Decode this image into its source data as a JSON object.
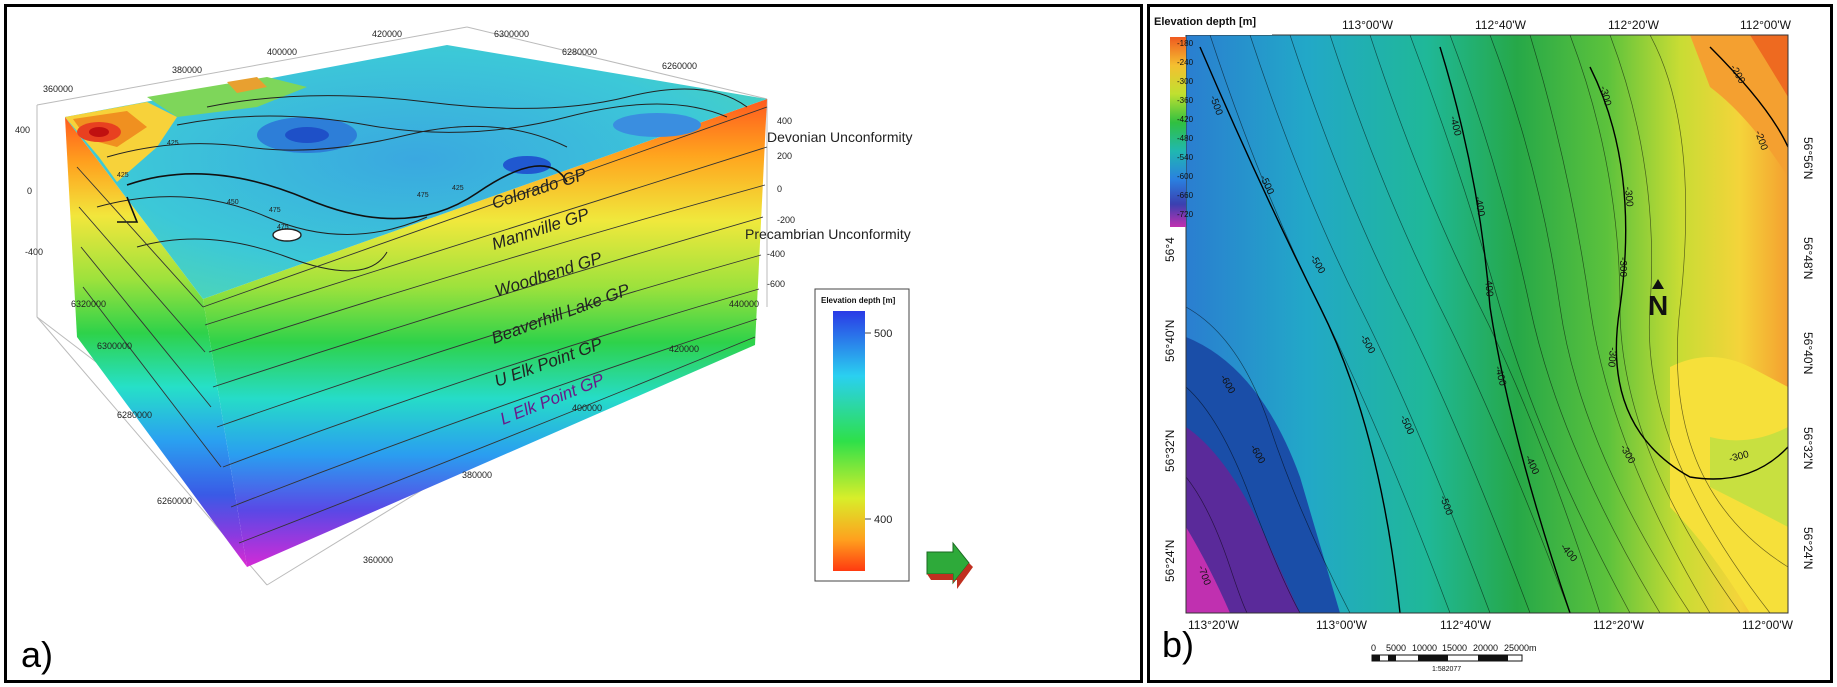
{
  "panel_a": {
    "label": "a)",
    "legend": {
      "title": "Elevation depth [m]",
      "ticks": [
        "500",
        "400"
      ]
    },
    "top_x_ticks": [
      "360000",
      "380000",
      "400000",
      "420000"
    ],
    "top_y_ticks": [
      "6300000",
      "6280000",
      "6260000"
    ],
    "left_z_ticks": [
      "400",
      "0",
      "-400"
    ],
    "right_z_ticks": [
      "400",
      "200",
      "0",
      "-200",
      "-400",
      "-600"
    ],
    "right_annotations": [
      "Devonian Unconformity",
      "Precambrian Unconformity"
    ],
    "left_y_ticks": [
      "6320000",
      "6300000",
      "6280000",
      "6260000"
    ],
    "bottom_x_ticks": [
      "440000",
      "420000",
      "400000",
      "380000",
      "360000"
    ],
    "formations": [
      "Colorado GP",
      "Mannville GP",
      "Woodbend GP",
      "Beaverhill Lake GP",
      "U Elk Point GP",
      "L Elk Point GP"
    ],
    "contour_labels": [
      "425",
      "475",
      "475",
      "475",
      "450",
      "425",
      "425"
    ]
  },
  "panel_b": {
    "label": "b)",
    "legend": {
      "title": "Elevation depth [m]",
      "ticks": [
        "-180",
        "-240",
        "-300",
        "-360",
        "-420",
        "-480",
        "-540",
        "-600",
        "-660",
        "-720"
      ]
    },
    "top_lon": [
      "113°00'W",
      "112°40'W",
      "112°20'W",
      "112°00'W"
    ],
    "bottom_lon": [
      "113°20'W",
      "113°00'W",
      "112°40'W",
      "112°20'W",
      "112°00'W"
    ],
    "left_lat": [
      "56°4",
      "56°40'N",
      "56°32'N",
      "56°24'N"
    ],
    "right_lat": [
      "56°56'N",
      "56°48'N",
      "56°40'N",
      "56°32'N",
      "56°24'N"
    ],
    "contour_labels": [
      "-500",
      "-500",
      "-500",
      "-500",
      "-500",
      "-500",
      "-600",
      "-600",
      "-700",
      "-400",
      "-400",
      "-400",
      "-400",
      "-400",
      "-400",
      "-300",
      "-300",
      "-300",
      "-300",
      "-300",
      "-300",
      "-200",
      "-200"
    ],
    "north": "N",
    "scalebar_ticks": [
      "0",
      "5000",
      "10000",
      "15000",
      "20000",
      "25000m"
    ],
    "scale": "1:582077"
  }
}
